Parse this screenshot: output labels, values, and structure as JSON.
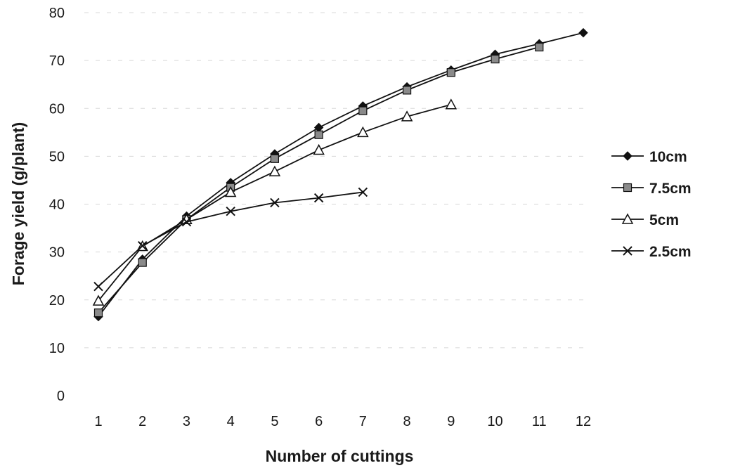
{
  "chart_data": {
    "type": "line",
    "title": "",
    "xlabel": "Number of cuttings",
    "ylabel": "Forage yield (g/plant)",
    "x": [
      1,
      2,
      3,
      4,
      5,
      6,
      7,
      8,
      9,
      10,
      11,
      12
    ],
    "xlim": [
      1,
      12
    ],
    "ylim": [
      0,
      80
    ],
    "y_ticks": [
      0,
      10,
      20,
      30,
      40,
      50,
      60,
      70,
      80
    ],
    "grid": true,
    "legend_position": "right",
    "series": [
      {
        "name": "10cm",
        "marker": "diamond",
        "color": "#111111",
        "x": [
          1,
          2,
          3,
          4,
          5,
          6,
          7,
          8,
          9,
          10,
          11,
          12
        ],
        "values": [
          16.5,
          28.5,
          37.5,
          44.5,
          50.5,
          56,
          60.5,
          64.5,
          68,
          71.3,
          73.5,
          75.8
        ]
      },
      {
        "name": "7.5cm",
        "marker": "square",
        "color": "#111111",
        "x": [
          1,
          2,
          3,
          4,
          5,
          6,
          7,
          8,
          9,
          10,
          11
        ],
        "values": [
          17.3,
          27.8,
          36.8,
          43.5,
          49.5,
          54.5,
          59.5,
          63.8,
          67.5,
          70.3,
          72.8
        ]
      },
      {
        "name": "5cm",
        "marker": "triangle",
        "color": "#111111",
        "x": [
          1,
          2,
          3,
          4,
          5,
          6,
          7,
          8,
          9
        ],
        "values": [
          19.8,
          31.2,
          36.8,
          42.5,
          46.8,
          51.3,
          55,
          58.3,
          60.8
        ]
      },
      {
        "name": "2.5cm",
        "marker": "x",
        "color": "#111111",
        "x": [
          1,
          2,
          3,
          4,
          5,
          6,
          7
        ],
        "values": [
          22.8,
          31.3,
          36.3,
          38.5,
          40.3,
          41.3,
          42.5
        ]
      }
    ]
  }
}
